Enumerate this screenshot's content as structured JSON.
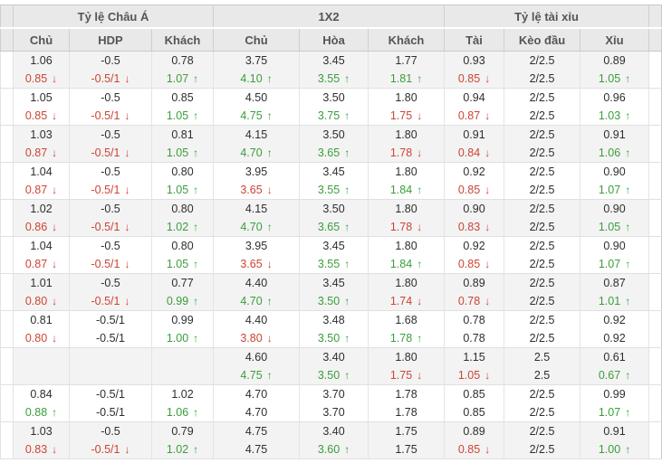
{
  "colors": {
    "up": "#3a9e3a",
    "down": "#cc4433",
    "text": "#2e2e2e",
    "header_bg": "#e9e9e9",
    "shaded_row_bg": "#f3f3f3"
  },
  "icons": {
    "up": "↑",
    "down": "↓"
  },
  "table": {
    "group_headers": [
      "Tỷ lệ Châu Á",
      "1X2",
      "Tỷ lệ tài xỉu"
    ],
    "column_headers": [
      "Chủ",
      "HDP",
      "Khách",
      "Chủ",
      "Hòa",
      "Khách",
      "Tài",
      "Kèo đầu",
      "Xỉu"
    ],
    "groups": [
      {
        "shaded": true,
        "lines": [
          [
            {
              "t": "1.06"
            },
            {
              "t": "-0.5"
            },
            {
              "t": "0.78"
            },
            {
              "t": "3.75"
            },
            {
              "t": "3.45"
            },
            {
              "t": "1.77"
            },
            {
              "t": "0.93"
            },
            {
              "t": "2/2.5"
            },
            {
              "t": "0.89"
            }
          ],
          [
            {
              "t": "0.85",
              "c": "r",
              "a": "d"
            },
            {
              "t": "-0.5/1",
              "c": "r",
              "a": "d"
            },
            {
              "t": "1.07",
              "c": "g",
              "a": "u"
            },
            {
              "t": "4.10",
              "c": "g",
              "a": "u"
            },
            {
              "t": "3.55",
              "c": "g",
              "a": "u"
            },
            {
              "t": "1.81",
              "c": "g",
              "a": "u"
            },
            {
              "t": "0.85",
              "c": "r",
              "a": "d"
            },
            {
              "t": "2/2.5"
            },
            {
              "t": "1.05",
              "c": "g",
              "a": "u"
            }
          ]
        ]
      },
      {
        "shaded": false,
        "lines": [
          [
            {
              "t": "1.05"
            },
            {
              "t": "-0.5"
            },
            {
              "t": "0.85"
            },
            {
              "t": "4.50"
            },
            {
              "t": "3.50"
            },
            {
              "t": "1.80"
            },
            {
              "t": "0.94"
            },
            {
              "t": "2/2.5"
            },
            {
              "t": "0.96"
            }
          ],
          [
            {
              "t": "0.85",
              "c": "r",
              "a": "d"
            },
            {
              "t": "-0.5/1",
              "c": "r",
              "a": "d"
            },
            {
              "t": "1.05",
              "c": "g",
              "a": "u"
            },
            {
              "t": "4.75",
              "c": "g",
              "a": "u"
            },
            {
              "t": "3.75",
              "c": "g",
              "a": "u"
            },
            {
              "t": "1.75",
              "c": "r",
              "a": "d"
            },
            {
              "t": "0.87",
              "c": "r",
              "a": "d"
            },
            {
              "t": "2/2.5"
            },
            {
              "t": "1.03",
              "c": "g",
              "a": "u"
            }
          ]
        ]
      },
      {
        "shaded": true,
        "lines": [
          [
            {
              "t": "1.03"
            },
            {
              "t": "-0.5"
            },
            {
              "t": "0.81"
            },
            {
              "t": "4.15"
            },
            {
              "t": "3.50"
            },
            {
              "t": "1.80"
            },
            {
              "t": "0.91"
            },
            {
              "t": "2/2.5"
            },
            {
              "t": "0.91"
            }
          ],
          [
            {
              "t": "0.87",
              "c": "r",
              "a": "d"
            },
            {
              "t": "-0.5/1",
              "c": "r",
              "a": "d"
            },
            {
              "t": "1.05",
              "c": "g",
              "a": "u"
            },
            {
              "t": "4.70",
              "c": "g",
              "a": "u"
            },
            {
              "t": "3.65",
              "c": "g",
              "a": "u"
            },
            {
              "t": "1.78",
              "c": "r",
              "a": "d"
            },
            {
              "t": "0.84",
              "c": "r",
              "a": "d"
            },
            {
              "t": "2/2.5"
            },
            {
              "t": "1.06",
              "c": "g",
              "a": "u"
            }
          ]
        ]
      },
      {
        "shaded": false,
        "lines": [
          [
            {
              "t": "1.04"
            },
            {
              "t": "-0.5"
            },
            {
              "t": "0.80"
            },
            {
              "t": "3.95"
            },
            {
              "t": "3.45"
            },
            {
              "t": "1.80"
            },
            {
              "t": "0.92"
            },
            {
              "t": "2/2.5"
            },
            {
              "t": "0.90"
            }
          ],
          [
            {
              "t": "0.87",
              "c": "r",
              "a": "d"
            },
            {
              "t": "-0.5/1",
              "c": "r",
              "a": "d"
            },
            {
              "t": "1.05",
              "c": "g",
              "a": "u"
            },
            {
              "t": "3.65",
              "c": "r",
              "a": "d"
            },
            {
              "t": "3.55",
              "c": "g",
              "a": "u"
            },
            {
              "t": "1.84",
              "c": "g",
              "a": "u"
            },
            {
              "t": "0.85",
              "c": "r",
              "a": "d"
            },
            {
              "t": "2/2.5"
            },
            {
              "t": "1.07",
              "c": "g",
              "a": "u"
            }
          ]
        ]
      },
      {
        "shaded": true,
        "lines": [
          [
            {
              "t": "1.02"
            },
            {
              "t": "-0.5"
            },
            {
              "t": "0.80"
            },
            {
              "t": "4.15"
            },
            {
              "t": "3.50"
            },
            {
              "t": "1.80"
            },
            {
              "t": "0.90"
            },
            {
              "t": "2/2.5"
            },
            {
              "t": "0.90"
            }
          ],
          [
            {
              "t": "0.86",
              "c": "r",
              "a": "d"
            },
            {
              "t": "-0.5/1",
              "c": "r",
              "a": "d"
            },
            {
              "t": "1.02",
              "c": "g",
              "a": "u"
            },
            {
              "t": "4.70",
              "c": "g",
              "a": "u"
            },
            {
              "t": "3.65",
              "c": "g",
              "a": "u"
            },
            {
              "t": "1.78",
              "c": "r",
              "a": "d"
            },
            {
              "t": "0.83",
              "c": "r",
              "a": "d"
            },
            {
              "t": "2/2.5"
            },
            {
              "t": "1.05",
              "c": "g",
              "a": "u"
            }
          ]
        ]
      },
      {
        "shaded": false,
        "lines": [
          [
            {
              "t": "1.04"
            },
            {
              "t": "-0.5"
            },
            {
              "t": "0.80"
            },
            {
              "t": "3.95"
            },
            {
              "t": "3.45"
            },
            {
              "t": "1.80"
            },
            {
              "t": "0.92"
            },
            {
              "t": "2/2.5"
            },
            {
              "t": "0.90"
            }
          ],
          [
            {
              "t": "0.87",
              "c": "r",
              "a": "d"
            },
            {
              "t": "-0.5/1",
              "c": "r",
              "a": "d"
            },
            {
              "t": "1.05",
              "c": "g",
              "a": "u"
            },
            {
              "t": "3.65",
              "c": "r",
              "a": "d"
            },
            {
              "t": "3.55",
              "c": "g",
              "a": "u"
            },
            {
              "t": "1.84",
              "c": "g",
              "a": "u"
            },
            {
              "t": "0.85",
              "c": "r",
              "a": "d"
            },
            {
              "t": "2/2.5"
            },
            {
              "t": "1.07",
              "c": "g",
              "a": "u"
            }
          ]
        ]
      },
      {
        "shaded": true,
        "lines": [
          [
            {
              "t": "1.01"
            },
            {
              "t": "-0.5"
            },
            {
              "t": "0.77"
            },
            {
              "t": "4.40"
            },
            {
              "t": "3.45"
            },
            {
              "t": "1.80"
            },
            {
              "t": "0.89"
            },
            {
              "t": "2/2.5"
            },
            {
              "t": "0.87"
            }
          ],
          [
            {
              "t": "0.80",
              "c": "r",
              "a": "d"
            },
            {
              "t": "-0.5/1",
              "c": "r",
              "a": "d"
            },
            {
              "t": "0.99",
              "c": "g",
              "a": "u"
            },
            {
              "t": "4.70",
              "c": "g",
              "a": "u"
            },
            {
              "t": "3.50",
              "c": "g",
              "a": "u"
            },
            {
              "t": "1.74",
              "c": "r",
              "a": "d"
            },
            {
              "t": "0.78",
              "c": "r",
              "a": "d"
            },
            {
              "t": "2/2.5"
            },
            {
              "t": "1.01",
              "c": "g",
              "a": "u"
            }
          ]
        ]
      },
      {
        "shaded": false,
        "lines": [
          [
            {
              "t": "0.81"
            },
            {
              "t": "-0.5/1"
            },
            {
              "t": "0.99"
            },
            {
              "t": "4.40"
            },
            {
              "t": "3.48"
            },
            {
              "t": "1.68"
            },
            {
              "t": "0.78"
            },
            {
              "t": "2/2.5"
            },
            {
              "t": "0.92"
            }
          ],
          [
            {
              "t": "0.80",
              "c": "r",
              "a": "d"
            },
            {
              "t": "-0.5/1"
            },
            {
              "t": "1.00",
              "c": "g",
              "a": "u"
            },
            {
              "t": "3.80",
              "c": "r",
              "a": "d"
            },
            {
              "t": "3.50",
              "c": "g",
              "a": "u"
            },
            {
              "t": "1.78",
              "c": "g",
              "a": "u"
            },
            {
              "t": "0.78"
            },
            {
              "t": "2/2.5"
            },
            {
              "t": "0.92"
            }
          ]
        ]
      },
      {
        "shaded": true,
        "lines": [
          [
            {
              "t": ""
            },
            {
              "t": ""
            },
            {
              "t": ""
            },
            {
              "t": "4.60"
            },
            {
              "t": "3.40"
            },
            {
              "t": "1.80"
            },
            {
              "t": "1.15"
            },
            {
              "t": "2.5"
            },
            {
              "t": "0.61"
            }
          ],
          [
            {
              "t": ""
            },
            {
              "t": ""
            },
            {
              "t": ""
            },
            {
              "t": "4.75",
              "c": "g",
              "a": "u"
            },
            {
              "t": "3.50",
              "c": "g",
              "a": "u"
            },
            {
              "t": "1.75",
              "c": "r",
              "a": "d"
            },
            {
              "t": "1.05",
              "c": "r",
              "a": "d"
            },
            {
              "t": "2.5"
            },
            {
              "t": "0.67",
              "c": "g",
              "a": "u"
            }
          ]
        ]
      },
      {
        "shaded": false,
        "lines": [
          [
            {
              "t": "0.84"
            },
            {
              "t": "-0.5/1"
            },
            {
              "t": "1.02"
            },
            {
              "t": "4.70"
            },
            {
              "t": "3.70"
            },
            {
              "t": "1.78"
            },
            {
              "t": "0.85"
            },
            {
              "t": "2/2.5"
            },
            {
              "t": "0.99"
            }
          ],
          [
            {
              "t": "0.88",
              "c": "g",
              "a": "u"
            },
            {
              "t": "-0.5/1"
            },
            {
              "t": "1.06",
              "c": "g",
              "a": "u"
            },
            {
              "t": "4.70"
            },
            {
              "t": "3.70"
            },
            {
              "t": "1.78"
            },
            {
              "t": "0.85"
            },
            {
              "t": "2/2.5"
            },
            {
              "t": "1.07",
              "c": "g",
              "a": "u"
            }
          ]
        ]
      },
      {
        "shaded": true,
        "lines": [
          [
            {
              "t": "1.03"
            },
            {
              "t": "-0.5"
            },
            {
              "t": "0.79"
            },
            {
              "t": "4.75"
            },
            {
              "t": "3.40"
            },
            {
              "t": "1.75"
            },
            {
              "t": "0.89"
            },
            {
              "t": "2/2.5"
            },
            {
              "t": "0.91"
            }
          ],
          [
            {
              "t": "0.83",
              "c": "r",
              "a": "d"
            },
            {
              "t": "-0.5/1",
              "c": "r",
              "a": "d"
            },
            {
              "t": "1.02",
              "c": "g",
              "a": "u"
            },
            {
              "t": "4.75"
            },
            {
              "t": "3.60",
              "c": "g",
              "a": "u"
            },
            {
              "t": "1.75"
            },
            {
              "t": "0.85",
              "c": "r",
              "a": "d"
            },
            {
              "t": "2/2.5"
            },
            {
              "t": "1.00",
              "c": "g",
              "a": "u"
            }
          ]
        ]
      }
    ]
  }
}
